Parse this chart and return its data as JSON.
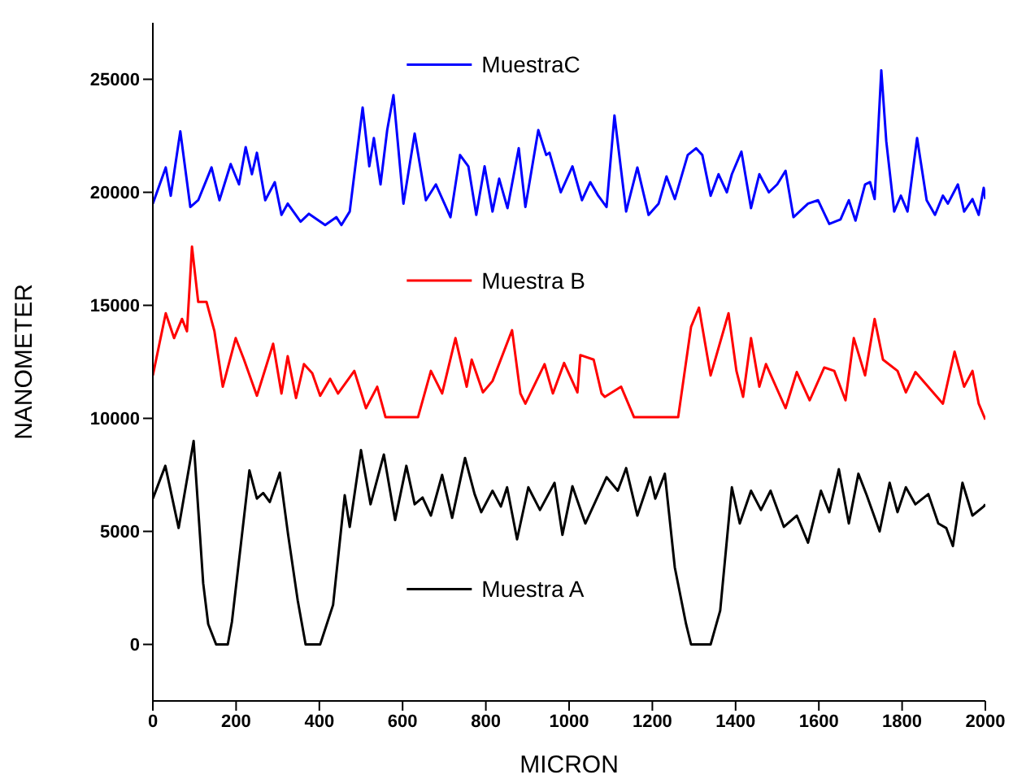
{
  "chart_data": {
    "type": "line",
    "xlabel": "MICRON",
    "ylabel": "NANOMETER",
    "xlim": [
      0,
      2000
    ],
    "xticks": [
      0,
      200,
      400,
      600,
      800,
      1000,
      1200,
      1400,
      1600,
      1800,
      2000
    ],
    "ylim": [
      -2500,
      27500
    ],
    "yticks": [
      0,
      5000,
      10000,
      15000,
      20000,
      25000
    ],
    "legend": "top",
    "marker": "none",
    "line_style": "solid",
    "series": [
      {
        "name": "MuestraC",
        "color": "#0000ff",
        "x": [
          0,
          31,
          43,
          66,
          90,
          109,
          141,
          160,
          187,
          207,
          223,
          238,
          250,
          270,
          293,
          309,
          324,
          355,
          375,
          414,
          441,
          453,
          473,
          504,
          520,
          531,
          547,
          563,
          578,
          602,
          629,
          656,
          680,
          715,
          738,
          758,
          777,
          797,
          816,
          832,
          852,
          879,
          895,
          926,
          945,
          953,
          980,
          1008,
          1031,
          1051,
          1070,
          1090,
          1109,
          1137,
          1164,
          1191,
          1215,
          1234,
          1254,
          1285,
          1305,
          1320,
          1340,
          1359,
          1379,
          1391,
          1414,
          1437,
          1457,
          1480,
          1500,
          1520,
          1539,
          1574,
          1598,
          1625,
          1652,
          1672,
          1688,
          1711,
          1723,
          1734,
          1750,
          1762,
          1781,
          1797,
          1813,
          1836,
          1859,
          1879,
          1898,
          1910,
          1934,
          1949,
          1969,
          1984,
          1996,
          2000
        ],
        "values": [
          19500,
          21100,
          19850,
          22700,
          19350,
          19650,
          21100,
          19650,
          21250,
          20350,
          22000,
          20800,
          21750,
          19650,
          20450,
          19000,
          19500,
          18700,
          19050,
          18550,
          18900,
          18550,
          19150,
          23750,
          21150,
          22400,
          20350,
          22750,
          24300,
          19500,
          22600,
          19650,
          20350,
          18900,
          21650,
          21150,
          19000,
          21150,
          19150,
          20600,
          19300,
          21950,
          19350,
          22750,
          21650,
          21750,
          20000,
          21150,
          19650,
          20450,
          19850,
          19350,
          23400,
          19150,
          21100,
          19000,
          19500,
          20700,
          19700,
          21650,
          21950,
          21650,
          19850,
          20800,
          20000,
          20800,
          21800,
          19300,
          20800,
          20000,
          20350,
          20950,
          18900,
          19500,
          19650,
          18600,
          18800,
          19650,
          18750,
          20350,
          20450,
          19700,
          25400,
          22250,
          19150,
          19850,
          19150,
          22400,
          19650,
          19000,
          19850,
          19500,
          20350,
          19150,
          19700,
          19000,
          20200,
          19700
        ]
      },
      {
        "name": "Muestra B",
        "color": "#ff0000",
        "x": [
          0,
          31,
          51,
          70,
          82,
          94,
          109,
          129,
          148,
          168,
          199,
          219,
          250,
          289,
          309,
          324,
          344,
          363,
          383,
          402,
          426,
          445,
          484,
          512,
          539,
          559,
          637,
          668,
          695,
          727,
          754,
          766,
          793,
          816,
          863,
          883,
          895,
          941,
          961,
          988,
          1020,
          1027,
          1059,
          1078,
          1086,
          1125,
          1156,
          1262,
          1293,
          1312,
          1340,
          1383,
          1402,
          1418,
          1437,
          1457,
          1473,
          1520,
          1547,
          1578,
          1613,
          1637,
          1664,
          1684,
          1711,
          1734,
          1754,
          1789,
          1809,
          1832,
          1898,
          1926,
          1949,
          1969,
          1984,
          2000
        ],
        "values": [
          11900,
          14650,
          13550,
          14400,
          13850,
          17600,
          15150,
          15150,
          13850,
          11400,
          13550,
          12600,
          11000,
          13300,
          11100,
          12750,
          10900,
          12400,
          12000,
          11000,
          11750,
          11100,
          12100,
          10450,
          11400,
          10050,
          10050,
          12100,
          11100,
          13550,
          11400,
          12600,
          11150,
          11650,
          13900,
          11100,
          10650,
          12400,
          11100,
          12450,
          11150,
          12800,
          12600,
          11100,
          10950,
          11400,
          10050,
          10050,
          14050,
          14900,
          11900,
          14650,
          12100,
          10950,
          13550,
          11400,
          12400,
          10450,
          12050,
          10800,
          12250,
          12100,
          10800,
          13550,
          11900,
          14400,
          12600,
          12100,
          11150,
          12050,
          10650,
          12950,
          11400,
          12100,
          10650,
          9950
        ]
      },
      {
        "name": "Muestra A",
        "color": "#000000",
        "x": [
          0,
          30,
          62,
          98,
          121,
          133,
          152,
          180,
          190,
          232,
          250,
          265,
          281,
          305,
          325,
          348,
          367,
          402,
          433,
          461,
          473,
          500,
          523,
          555,
          582,
          609,
          629,
          648,
          668,
          695,
          719,
          750,
          773,
          789,
          816,
          836,
          851,
          875,
          902,
          930,
          965,
          984,
          1008,
          1039,
          1090,
          1117,
          1137,
          1164,
          1195,
          1207,
          1230,
          1254,
          1281,
          1293,
          1340,
          1363,
          1391,
          1410,
          1437,
          1461,
          1484,
          1516,
          1547,
          1574,
          1605,
          1625,
          1648,
          1672,
          1695,
          1715,
          1746,
          1770,
          1789,
          1809,
          1832,
          1863,
          1887,
          1906,
          1922,
          1945,
          1969,
          1996,
          2000
        ],
        "values": [
          6450,
          7900,
          5150,
          9000,
          2700,
          900,
          0,
          0,
          1000,
          7700,
          6450,
          6700,
          6300,
          7600,
          4850,
          1950,
          0,
          0,
          1750,
          6600,
          5200,
          8600,
          6200,
          8400,
          5500,
          7900,
          6200,
          6500,
          5700,
          7500,
          5600,
          8250,
          6650,
          5850,
          6800,
          6100,
          6950,
          4650,
          6950,
          5950,
          7150,
          4850,
          7000,
          5350,
          7400,
          6800,
          7800,
          5700,
          7400,
          6450,
          7550,
          3400,
          900,
          0,
          0,
          1500,
          6950,
          5350,
          6800,
          5950,
          6800,
          5200,
          5700,
          4500,
          6800,
          5850,
          7750,
          5350,
          7550,
          6600,
          5000,
          7150,
          5850,
          6950,
          6200,
          6650,
          5350,
          5150,
          4350,
          7150,
          5700,
          6100,
          6200
        ]
      }
    ]
  }
}
